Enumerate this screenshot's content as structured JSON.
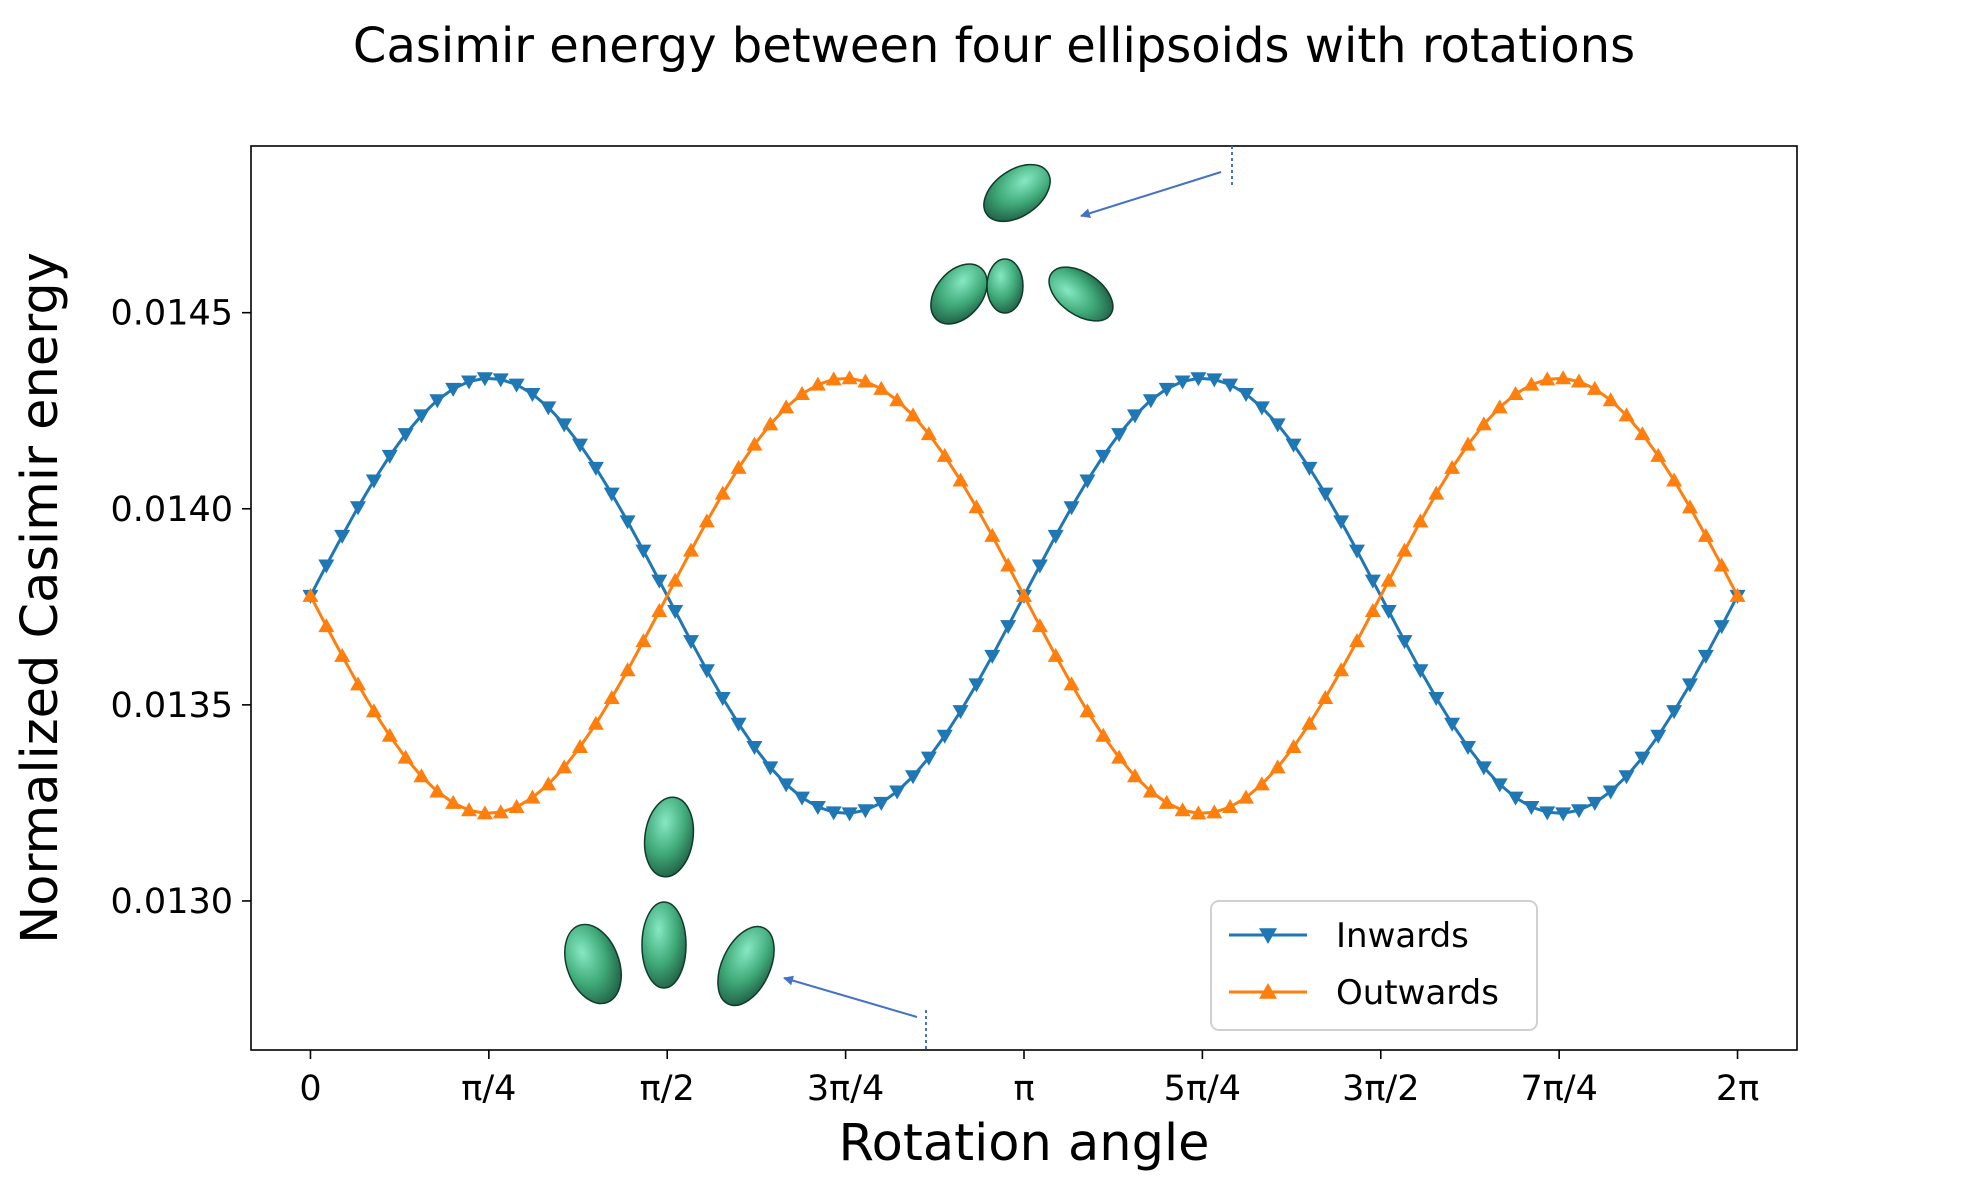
{
  "chart_data": {
    "type": "line",
    "title": "Casimir energy between four ellipsoids with rotations",
    "xlabel": "Rotation angle",
    "ylabel": "Normalized Casimir energy",
    "xlim": [
      -0.2618,
      6.545
    ],
    "ylim": [
      0.01262,
      0.014925
    ],
    "x_ticks": [
      {
        "value": 0,
        "label": "0"
      },
      {
        "value": 0.7854,
        "label": "π/4"
      },
      {
        "value": 1.5708,
        "label": "π/2"
      },
      {
        "value": 2.3562,
        "label": "3π/4"
      },
      {
        "value": 3.1416,
        "label": "π"
      },
      {
        "value": 3.927,
        "label": "5π/4"
      },
      {
        "value": 4.7124,
        "label": "3π/2"
      },
      {
        "value": 5.4978,
        "label": "7π/4"
      },
      {
        "value": 6.2832,
        "label": "2π"
      }
    ],
    "y_ticks": [
      {
        "value": 0.013,
        "label": "0.0130"
      },
      {
        "value": 0.0135,
        "label": "0.0135"
      },
      {
        "value": 0.014,
        "label": "0.0140"
      },
      {
        "value": 0.0145,
        "label": "0.0145"
      }
    ],
    "model": {
      "mean": 0.013778,
      "amplitude": 0.000555,
      "phase": 0.0,
      "period": 3.14159,
      "x_start": 0.0,
      "x_end": 6.28319,
      "points": 91
    },
    "series": [
      {
        "name": "Inwards",
        "color": "#1f77b4",
        "marker": "triangle-down",
        "sign": 1
      },
      {
        "name": "Outwards",
        "color": "#ff7f0e",
        "marker": "triangle-up",
        "sign": -1
      }
    ],
    "legend": {
      "position": "lower-right"
    },
    "grid": false,
    "annotations": [
      {
        "name": "inset-inwards",
        "description": "four green ellipsoids rotated inward",
        "points_to_x": 3.5343,
        "points_to_y": 0.014818,
        "color": "#4472c4"
      },
      {
        "name": "inset-outwards",
        "description": "four green ellipsoids rotated outward",
        "points_to_x": 2.7489,
        "points_to_y": 0.012738,
        "color": "#4472c4"
      }
    ]
  }
}
